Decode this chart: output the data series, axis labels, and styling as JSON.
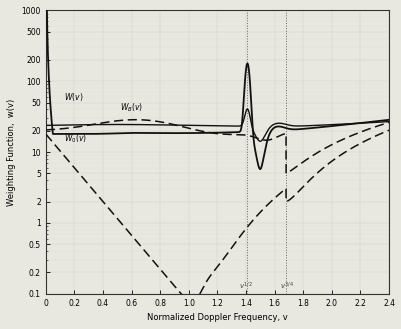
{
  "title": "",
  "xlabel": "Normalized Doppler Frequency, v",
  "ylabel": "Weighting Function,  w(v)",
  "xlim": [
    0,
    2.4
  ],
  "ylim_log": [
    0.1,
    1000
  ],
  "yticks": [
    0.1,
    0.2,
    0.5,
    1.0,
    2.0,
    5.0,
    10,
    20,
    50,
    100,
    200,
    500,
    1000
  ],
  "ytick_labels": [
    "0.1",
    "0.2",
    "0.5",
    "1",
    "2",
    "5",
    "10",
    "20",
    "50",
    "100",
    "200",
    "500",
    "1000"
  ],
  "xticks": [
    0,
    0.2,
    0.4,
    0.6,
    0.8,
    1.0,
    1.2,
    1.4,
    1.6,
    1.8,
    2.0,
    2.2,
    2.4
  ],
  "xtick_labels": [
    "0",
    "0.2",
    "0.4",
    "0.6",
    "0.8",
    "1.0",
    "1.2",
    "1.4",
    "1.6",
    "1.8",
    "2.0",
    "2.2",
    "2.4"
  ],
  "vline1": 1.41,
  "vline2": 1.68,
  "background_color": "#e8e8e0",
  "line_color": "#111111",
  "dashed_color": "#111111",
  "label_W": "W(v)",
  "label_WB": "W_B(v)",
  "label_W0": "W_0(v)"
}
